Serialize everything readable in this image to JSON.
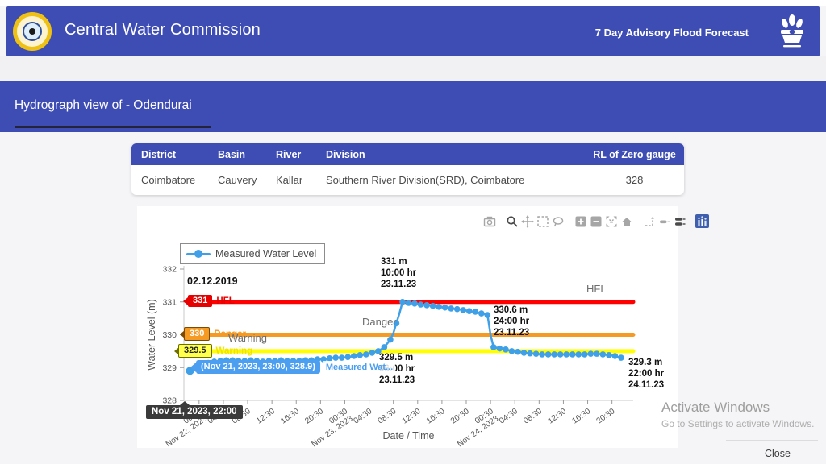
{
  "header": {
    "title": "Central Water Commission",
    "right_text": "7 Day Advisory Flood Forecast"
  },
  "title_bar": {
    "text": "Hydrograph view of - Odendurai"
  },
  "station_table": {
    "columns": [
      "District",
      "Basin",
      "River",
      "Division",
      "RL of Zero gauge"
    ],
    "row": [
      "Coimbatore",
      "Cauvery",
      "Kallar",
      "Southern River Division(SRD), Coimbatore",
      "328"
    ]
  },
  "modebar_tools": [
    "download-plot-camera",
    "zoom",
    "pan",
    "box-select",
    "lasso-select",
    "zoom-in",
    "zoom-out",
    "autoscale",
    "reset-axes",
    "toggle-spikelines",
    "show-closest-on-hover",
    "compare-data-on-hover",
    "plotly-logo"
  ],
  "chart": {
    "legend": "Measured Water Level",
    "labels": {
      "hfl_badge": "331",
      "hfl_line": "HFL",
      "danger_badge": "330",
      "danger_line": "Danger",
      "warning_badge": "329.5",
      "warning_line": "Warning",
      "hfl_gray": "HFL",
      "danger_gray": "Danger",
      "warning_gray": "Warning"
    },
    "annotations": {
      "hfl_date": "02.12.2019",
      "peak": "331 m\n10:00 hr\n23.11.23",
      "recession": "330.6 m\n24:00 hr\n23.11.23",
      "warning_cross": "329.5 m\n06:00 hr\n23.11.23",
      "last_point": "329.3 m\n22:00 hr\n24.11.23"
    },
    "hover": {
      "point_label": "(Nov 21, 2023, 23:00, 328.9)",
      "series_truncated": "Measured Wat...",
      "axis_label": "Nov 21, 2023, 22:00"
    }
  },
  "chart_data": {
    "type": "line",
    "title": "Hydrograph view of - Odendurai",
    "xlabel": "Date / Time",
    "ylabel": "Water Level (m)",
    "ylim": [
      328,
      332
    ],
    "y_ticks": [
      328,
      329,
      330,
      331,
      332
    ],
    "x_unit": "hours since Nov 21, 2023 22:00",
    "xlim": [
      0,
      74
    ],
    "grid": false,
    "legend_position": "top-left",
    "x_ticks": [
      {
        "t": 2.5,
        "time": "00:30",
        "date": "Nov 22, 2023"
      },
      {
        "t": 6.5,
        "time": "04:30"
      },
      {
        "t": 10.5,
        "time": "08:30"
      },
      {
        "t": 14.5,
        "time": "12:30"
      },
      {
        "t": 18.5,
        "time": "16:30"
      },
      {
        "t": 22.5,
        "time": "20:30"
      },
      {
        "t": 26.5,
        "time": "00:30",
        "date": "Nov 23, 2023"
      },
      {
        "t": 30.5,
        "time": "04:30"
      },
      {
        "t": 34.5,
        "time": "08:30"
      },
      {
        "t": 38.5,
        "time": "12:30"
      },
      {
        "t": 42.5,
        "time": "16:30"
      },
      {
        "t": 46.5,
        "time": "20:30"
      },
      {
        "t": 50.5,
        "time": "00:30",
        "date": "Nov 24, 2023"
      },
      {
        "t": 54.5,
        "time": "04:30"
      },
      {
        "t": 58.5,
        "time": "08:30"
      },
      {
        "t": 62.5,
        "time": "12:30"
      },
      {
        "t": 66.5,
        "time": "16:30"
      },
      {
        "t": 70.5,
        "time": "20:30"
      }
    ],
    "reference_lines": [
      {
        "name": "HFL",
        "value": 331,
        "color": "#ff0000",
        "note": "02.12.2019"
      },
      {
        "name": "Danger",
        "value": 330,
        "color": "#f59a23"
      },
      {
        "name": "Warning",
        "value": 329.5,
        "color": "#ffея00"
      }
    ],
    "annotated_points": [
      {
        "value_m": 331,
        "time": "10:00 hr",
        "date": "23.11.23"
      },
      {
        "value_m": 330.6,
        "time": "24:00 hr",
        "date": "23.11.23"
      },
      {
        "value_m": 329.5,
        "time": "06:00 hr",
        "date": "23.11.23"
      },
      {
        "value_m": 329.3,
        "time": "22:00 hr",
        "date": "24.11.23"
      }
    ],
    "series": [
      {
        "name": "Measured Water Level",
        "color": "#3fa0e8",
        "points": [
          [
            1,
            328.9
          ],
          [
            2,
            329.0
          ],
          [
            3,
            329.08
          ],
          [
            4,
            329.14
          ],
          [
            5,
            329.18
          ],
          [
            6,
            329.2
          ],
          [
            7,
            329.22
          ],
          [
            8,
            329.22
          ],
          [
            9,
            329.2
          ],
          [
            10,
            329.2
          ],
          [
            11,
            329.22
          ],
          [
            12,
            329.2
          ],
          [
            13,
            329.18
          ],
          [
            14,
            329.2
          ],
          [
            15,
            329.2
          ],
          [
            16,
            329.22
          ],
          [
            17,
            329.2
          ],
          [
            18,
            329.2
          ],
          [
            19,
            329.2
          ],
          [
            20,
            329.22
          ],
          [
            21,
            329.22
          ],
          [
            22,
            329.25
          ],
          [
            23,
            329.25
          ],
          [
            24,
            329.28
          ],
          [
            25,
            329.3
          ],
          [
            26,
            329.3
          ],
          [
            27,
            329.32
          ],
          [
            28,
            329.35
          ],
          [
            29,
            329.38
          ],
          [
            30,
            329.4
          ],
          [
            31,
            329.45
          ],
          [
            32,
            329.5
          ],
          [
            33,
            329.62
          ],
          [
            34,
            329.85
          ],
          [
            34.5,
            330.05
          ],
          [
            35,
            330.35
          ],
          [
            35.5,
            330.65
          ],
          [
            36,
            331.0
          ],
          [
            37,
            330.97
          ],
          [
            38,
            330.95
          ],
          [
            39,
            330.92
          ],
          [
            40,
            330.9
          ],
          [
            41,
            330.88
          ],
          [
            42,
            330.85
          ],
          [
            43,
            330.83
          ],
          [
            44,
            330.8
          ],
          [
            45,
            330.78
          ],
          [
            46,
            330.75
          ],
          [
            47,
            330.72
          ],
          [
            48,
            330.7
          ],
          [
            49,
            330.65
          ],
          [
            50,
            330.6
          ],
          [
            50.5,
            330.0
          ],
          [
            51,
            329.62
          ],
          [
            52,
            329.58
          ],
          [
            53,
            329.55
          ],
          [
            54,
            329.5
          ],
          [
            55,
            329.48
          ],
          [
            56,
            329.45
          ],
          [
            57,
            329.43
          ],
          [
            58,
            329.42
          ],
          [
            59,
            329.4
          ],
          [
            60,
            329.4
          ],
          [
            61,
            329.4
          ],
          [
            62,
            329.4
          ],
          [
            63,
            329.4
          ],
          [
            64,
            329.4
          ],
          [
            65,
            329.4
          ],
          [
            66,
            329.4
          ],
          [
            67,
            329.42
          ],
          [
            68,
            329.42
          ],
          [
            69,
            329.4
          ],
          [
            70,
            329.38
          ],
          [
            71,
            329.35
          ],
          [
            72,
            329.3
          ]
        ]
      }
    ]
  },
  "watermark": {
    "line1": "Activate Windows",
    "line2": "Go to Settings to activate Windows."
  },
  "footer": {
    "close_label": "Close"
  },
  "colors": {
    "header_blue": "#3d4db4",
    "hfl_red": "#e60000",
    "danger_orange": "#f59a23",
    "warning_yellow": "#ffff00",
    "series_blue": "#3fa0e8",
    "hover_blue": "#4b9ef0"
  }
}
